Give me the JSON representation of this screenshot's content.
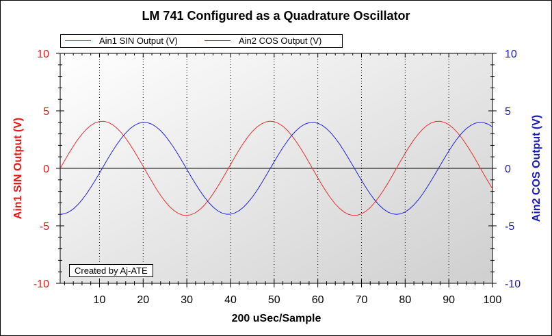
{
  "chart_data": {
    "type": "line",
    "title": "LM 741 Configured as a Quadrature Oscillator",
    "xlabel": "200 uSec/Sample",
    "ylabel_left": "Ain1 SIN Output (V)",
    "ylabel_right": "Ain2 COS Output (V)",
    "xlim": [
      1,
      100
    ],
    "ylim_left": [
      -10,
      10
    ],
    "ylim_right": [
      -10,
      10
    ],
    "xticks": [
      "10",
      "20",
      "30",
      "40",
      "50",
      "60",
      "70",
      "80",
      "90",
      "100"
    ],
    "yticks_left": [
      "10",
      "5",
      "0",
      "-5",
      "-10"
    ],
    "yticks_right": [
      "10",
      "5",
      "0",
      "-5",
      "-10"
    ],
    "grid": "vertical dotted at x major ticks",
    "legend_position": "top",
    "annotation": "Created by Aj-ATE",
    "colors": {
      "left_axis": "#e81818",
      "right_axis": "#1818c0",
      "sin": "#e83030",
      "cos": "#2020e0"
    },
    "x_start": 1,
    "x_step": 1,
    "series": [
      {
        "name": "Ain1 SIN Output (V)",
        "axis": "left",
        "values": [
          0,
          0.66,
          1.32,
          1.93,
          2.49,
          2.98,
          3.4,
          3.73,
          3.96,
          4.08,
          4.09,
          4.0,
          3.8,
          3.49,
          3.1,
          2.62,
          2.07,
          1.47,
          0.83,
          0.17,
          -0.5,
          -1.15,
          -1.78,
          -2.35,
          -2.87,
          -3.31,
          -3.66,
          -3.91,
          -4.06,
          -4.1,
          -4.03,
          -3.86,
          -3.58,
          -3.21,
          -2.75,
          -2.22,
          -1.63,
          -1.0,
          -0.34,
          0.33,
          0.99,
          1.62,
          2.21,
          2.75,
          3.21,
          3.58,
          3.85,
          4.03,
          4.1,
          4.06,
          3.91,
          3.66,
          3.31,
          2.87,
          2.36,
          1.78,
          1.16,
          0.5,
          -0.16,
          -0.83,
          -1.47,
          -2.07,
          -2.62,
          -3.1,
          -3.49,
          -3.8,
          -4.0,
          -4.09,
          -4.08,
          -3.96,
          -3.73,
          -3.41,
          -2.99,
          -2.49,
          -1.93,
          -1.32,
          -0.67,
          0,
          0.66,
          1.31,
          1.92,
          2.49,
          2.98,
          3.4,
          3.73,
          3.96,
          4.08,
          4.09,
          4.0,
          3.8,
          3.5,
          3.1,
          2.62,
          2.07,
          1.48,
          0.84,
          0.17,
          -0.5,
          -1.15,
          -1.78
        ]
      },
      {
        "name": "Ain2 COS Output (V)",
        "axis": "right",
        "values": [
          -4.0,
          -3.95,
          -3.79,
          -3.53,
          -3.18,
          -2.74,
          -2.23,
          -1.66,
          -1.05,
          -0.41,
          0.24,
          0.89,
          1.51,
          2.09,
          2.62,
          3.08,
          3.45,
          3.73,
          3.92,
          4.0,
          3.97,
          3.84,
          3.6,
          3.28,
          2.86,
          2.36,
          1.81,
          1.21,
          0.57,
          -0.08,
          -0.73,
          -1.36,
          -1.95,
          -2.49,
          -2.97,
          -3.36,
          -3.67,
          -3.88,
          -3.99,
          -3.99,
          -3.88,
          -3.67,
          -3.37,
          -2.97,
          -2.5,
          -1.96,
          -1.36,
          -0.73,
          -0.08,
          0.57,
          1.2,
          1.81,
          2.36,
          2.86,
          3.27,
          3.6,
          3.84,
          3.97,
          4.0,
          3.92,
          3.74,
          3.45,
          3.08,
          2.62,
          2.1,
          1.52,
          0.89,
          0.25,
          -0.4,
          -1.04,
          -1.66,
          -2.23,
          -2.74,
          -3.18,
          -3.53,
          -3.79,
          -3.95,
          -4.0,
          -3.95,
          -3.79,
          -3.53,
          -3.18,
          -2.74,
          -2.23,
          -1.66,
          -1.05,
          -0.41,
          0.24,
          0.89,
          1.51,
          2.09,
          2.62,
          3.07,
          3.45,
          3.73,
          3.92,
          4.0,
          3.97,
          3.84,
          3.61
        ]
      }
    ]
  }
}
